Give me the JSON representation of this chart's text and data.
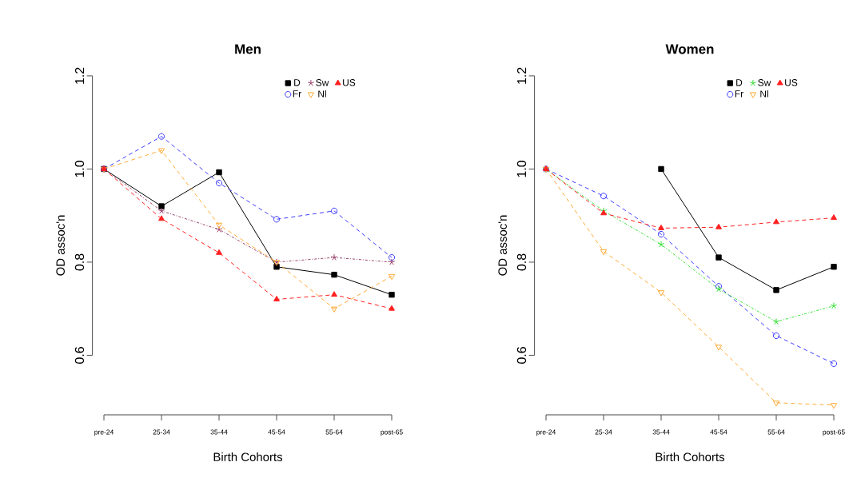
{
  "chart_data": [
    {
      "type": "line",
      "title": "Men",
      "xlabel": "Birth Cohorts",
      "ylabel": "OD assoc'n",
      "categories": [
        "pre-24",
        "25-34",
        "35-44",
        "45-54",
        "55-64",
        "post-65"
      ],
      "ylim": [
        0.472,
        1.2
      ],
      "yticks": [
        0.6,
        0.8,
        {
          "value": 1.0,
          "label": "1.0"
        },
        1.2
      ],
      "legend": "top right",
      "grid": false,
      "series": [
        {
          "name": "D",
          "color": "#000000",
          "marker": "square",
          "line_style": "solid",
          "values": [
            1.0,
            0.92,
            0.993,
            0.79,
            0.773,
            0.73
          ]
        },
        {
          "name": "Fr",
          "color": "#3b3bff",
          "marker": "circle",
          "line_style": "dashed",
          "values": [
            1.0,
            1.07,
            0.97,
            0.892,
            0.91,
            0.81
          ]
        },
        {
          "name": "Sw",
          "color": "#99406b",
          "marker": "cross",
          "line_style": "dashdot",
          "values": [
            1.0,
            0.91,
            0.87,
            0.8,
            0.81,
            0.8
          ]
        },
        {
          "name": "Nl",
          "color": "#ffaa33",
          "marker": "triangle_down",
          "line_style": "dashed",
          "values": [
            1.0,
            1.04,
            0.88,
            0.8,
            0.7,
            0.77
          ]
        },
        {
          "name": "US",
          "color": "#ff2020",
          "marker": "triangle",
          "line_style": "dashed",
          "values": [
            1.0,
            0.893,
            0.82,
            0.72,
            0.73,
            0.7
          ]
        }
      ]
    },
    {
      "type": "line",
      "title": "Women",
      "xlabel": "Birth Cohorts",
      "ylabel": "OD assoc'n",
      "categories": [
        "pre-24",
        "25-34",
        "35-44",
        "45-54",
        "55-64",
        "post-65"
      ],
      "ylim": [
        0.472,
        1.2
      ],
      "yticks": [
        0.6,
        0.8,
        {
          "value": 1.0,
          "label": "1.0"
        },
        1.2
      ],
      "legend": "top right",
      "grid": false,
      "series": [
        {
          "name": "D",
          "color": "#000000",
          "marker": "square",
          "line_style": "solid",
          "values": [
            null,
            null,
            1.0,
            0.81,
            0.74,
            0.79
          ]
        },
        {
          "name": "Fr",
          "color": "#3b3bff",
          "marker": "circle",
          "line_style": "dashed",
          "values": [
            1.0,
            0.942,
            0.86,
            0.748,
            0.642,
            0.582
          ]
        },
        {
          "name": "Sw",
          "color": "#33e033",
          "marker": "cross",
          "line_style": "dashdot",
          "values": [
            1.0,
            0.91,
            0.838,
            0.742,
            0.672,
            0.706
          ]
        },
        {
          "name": "Nl",
          "color": "#ffaa33",
          "marker": "triangle_down",
          "line_style": "dashed",
          "values": [
            1.0,
            0.823,
            0.735,
            0.618,
            0.498,
            0.493
          ]
        },
        {
          "name": "US",
          "color": "#ff2020",
          "marker": "triangle",
          "line_style": "dashed",
          "values": [
            1.0,
            0.905,
            0.873,
            0.875,
            0.886,
            0.895
          ]
        }
      ]
    }
  ]
}
